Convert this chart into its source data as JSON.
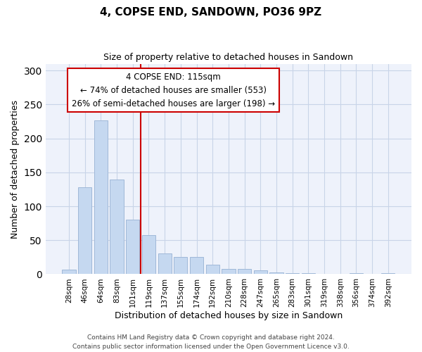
{
  "title": "4, COPSE END, SANDOWN, PO36 9PZ",
  "subtitle": "Size of property relative to detached houses in Sandown",
  "xlabel": "Distribution of detached houses by size in Sandown",
  "ylabel": "Number of detached properties",
  "bar_labels": [
    "28sqm",
    "46sqm",
    "64sqm",
    "83sqm",
    "101sqm",
    "119sqm",
    "137sqm",
    "155sqm",
    "174sqm",
    "192sqm",
    "210sqm",
    "228sqm",
    "247sqm",
    "265sqm",
    "283sqm",
    "301sqm",
    "319sqm",
    "338sqm",
    "356sqm",
    "374sqm",
    "392sqm"
  ],
  "bar_values": [
    7,
    128,
    227,
    139,
    80,
    58,
    31,
    25,
    25,
    14,
    8,
    8,
    6,
    3,
    2,
    1,
    0,
    0,
    1,
    0,
    1
  ],
  "bar_color": "#c5d8f0",
  "bar_edge_color": "#a0b8d8",
  "vline_x": 4.5,
  "vline_color": "#cc0000",
  "annotation_title": "4 COPSE END: 115sqm",
  "annotation_line1": "← 74% of detached houses are smaller (553)",
  "annotation_line2": "26% of semi-detached houses are larger (198) →",
  "annotation_box_color": "#cc0000",
  "ylim": [
    0,
    310
  ],
  "yticks": [
    0,
    50,
    100,
    150,
    200,
    250,
    300
  ],
  "footer1": "Contains HM Land Registry data © Crown copyright and database right 2024.",
  "footer2": "Contains public sector information licensed under the Open Government Licence v3.0.",
  "bg_color": "#eef2fb",
  "grid_color": "#c8d4e8"
}
